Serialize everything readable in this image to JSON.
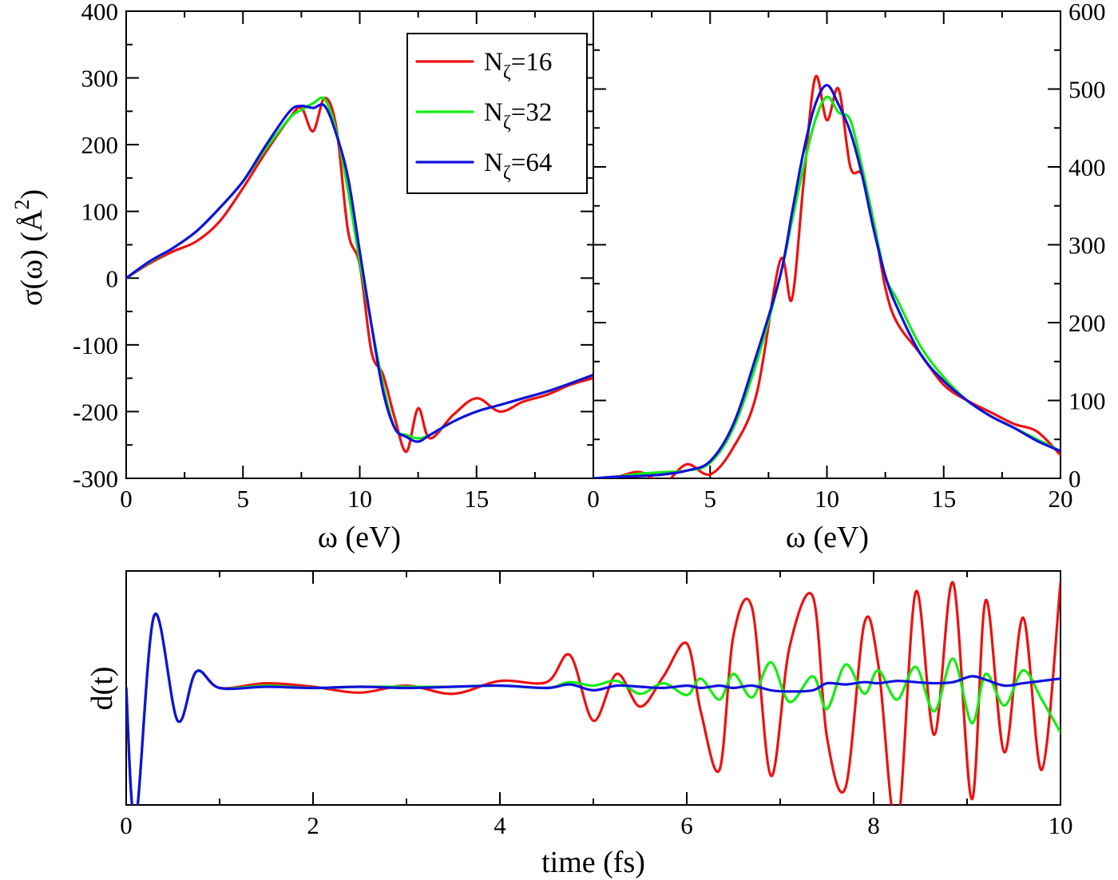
{
  "colors": {
    "red": "#ee1111",
    "green": "#11ee11",
    "blue": "#1111dd"
  },
  "legend": [
    {
      "base": "N",
      "sub": "ζ",
      "rest": "=16",
      "color": "#ee1111"
    },
    {
      "base": "N",
      "sub": "ζ",
      "rest": "=32",
      "color": "#11ee11"
    },
    {
      "base": "N",
      "sub": "ζ",
      "rest": "=64",
      "color": "#1111dd"
    }
  ],
  "labels": {
    "left_ylabel": "σ(ω) (Å",
    "left_ylabel_sup": "2",
    "left_ylabel_close": ")",
    "left_xlabel": "ω (eV)",
    "right_xlabel": "ω (eV)",
    "bottom_xlabel": "time (fs)",
    "bottom_ylabel": "d(t)"
  },
  "chart_data": [
    {
      "id": "left",
      "type": "line",
      "title": "",
      "xlabel": "ω (eV)",
      "ylabel": "σ(ω) (Å^2)",
      "xlim": [
        0,
        20
      ],
      "ylim": [
        -300,
        400
      ],
      "xticks": [
        0,
        5,
        10,
        15
      ],
      "xtick_labels": [
        "0",
        "5",
        "10",
        "15"
      ],
      "yticks": [
        -300,
        -200,
        -100,
        0,
        100,
        200,
        300,
        400
      ],
      "ytick_labels": [
        "-300",
        "-200",
        "-100",
        "0",
        "100",
        "200",
        "300",
        "400"
      ],
      "x": [
        0,
        1,
        2,
        3,
        4,
        5,
        6,
        7,
        7.5,
        8,
        8.5,
        9,
        9.5,
        10,
        10.5,
        11,
        11.5,
        12,
        12.5,
        13,
        14,
        15,
        16,
        17,
        18,
        19,
        20
      ],
      "series": [
        {
          "name": "N_ζ=16",
          "color": "#ee1111",
          "values": [
            0,
            22,
            40,
            55,
            85,
            135,
            190,
            240,
            255,
            220,
            270,
            225,
            70,
            20,
            -110,
            -145,
            -210,
            -260,
            -195,
            -240,
            -205,
            -180,
            -200,
            -185,
            -175,
            -160,
            -150
          ]
        },
        {
          "name": "N_ζ=32",
          "color": "#11ee11",
          "values": [
            0,
            24,
            45,
            70,
            105,
            145,
            195,
            240,
            252,
            262,
            268,
            220,
            130,
            25,
            -70,
            -160,
            -225,
            -235,
            -240,
            -235,
            -215,
            -200,
            -190,
            -180,
            -170,
            -158,
            -145
          ]
        },
        {
          "name": "N_ζ=64",
          "color": "#1111dd",
          "values": [
            0,
            25,
            45,
            70,
            105,
            145,
            200,
            250,
            258,
            255,
            258,
            215,
            150,
            40,
            -70,
            -170,
            -225,
            -238,
            -245,
            -235,
            -215,
            -200,
            -190,
            -180,
            -170,
            -158,
            -145
          ]
        }
      ]
    },
    {
      "id": "right",
      "type": "line",
      "title": "",
      "xlabel": "ω (eV)",
      "ylabel": "",
      "xlim": [
        0,
        20
      ],
      "ylim": [
        0,
        600
      ],
      "xticks": [
        0,
        5,
        10,
        15,
        20
      ],
      "xtick_labels": [
        "0",
        "5",
        "10",
        "15",
        "20"
      ],
      "yticks": [
        0,
        100,
        200,
        300,
        400,
        500,
        600
      ],
      "ytick_labels": [
        "0",
        "100",
        "200",
        "300",
        "400",
        "500",
        "600"
      ],
      "x": [
        0,
        1,
        2,
        3,
        4,
        5,
        6,
        7,
        8,
        8.5,
        9,
        9.5,
        10,
        10.5,
        11,
        11.5,
        12,
        12.5,
        13,
        14,
        15,
        16,
        17,
        18,
        19,
        20
      ],
      "series": [
        {
          "name": "N_ζ=16",
          "color": "#ee1111",
          "values": [
            0,
            2,
            8,
            -6,
            18,
            5,
            40,
            110,
            280,
            230,
            380,
            515,
            460,
            500,
            400,
            390,
            330,
            245,
            200,
            160,
            120,
            100,
            85,
            70,
            60,
            30
          ]
        },
        {
          "name": "N_ζ=32",
          "color": "#11ee11",
          "values": [
            0,
            2,
            6,
            8,
            10,
            20,
            65,
            150,
            260,
            330,
            400,
            460,
            490,
            470,
            460,
            400,
            330,
            260,
            230,
            170,
            130,
            100,
            80,
            65,
            50,
            35
          ]
        },
        {
          "name": "N_ζ=64",
          "color": "#1111dd",
          "values": [
            0,
            2,
            3,
            5,
            10,
            22,
            70,
            160,
            260,
            340,
            420,
            480,
            505,
            480,
            445,
            390,
            320,
            260,
            220,
            160,
            125,
            100,
            80,
            65,
            48,
            35
          ]
        }
      ]
    },
    {
      "id": "bottom",
      "type": "line",
      "title": "",
      "xlabel": "time (fs)",
      "ylabel": "d(t)",
      "xlim": [
        0,
        10
      ],
      "ylim": [
        -1,
        1
      ],
      "xticks": [
        0,
        2,
        4,
        6,
        8,
        10
      ],
      "xtick_labels": [
        "0",
        "2",
        "4",
        "6",
        "8",
        "10"
      ],
      "yticks": [],
      "ytick_labels": [],
      "x": [
        0,
        0.1,
        0.3,
        0.55,
        0.75,
        1.0,
        1.5,
        2.0,
        2.5,
        3.0,
        3.5,
        4.0,
        4.5,
        4.75,
        5.0,
        5.25,
        5.5,
        5.75,
        6.0,
        6.15,
        6.35,
        6.5,
        6.7,
        6.9,
        7.1,
        7.35,
        7.5,
        7.7,
        7.9,
        8.05,
        8.25,
        8.45,
        8.65,
        8.85,
        9.05,
        9.2,
        9.4,
        9.6,
        9.8,
        10.0
      ],
      "series": [
        {
          "name": "N_ζ=16",
          "color": "#ee1111",
          "values": [
            0,
            -1.13,
            0.62,
            -0.28,
            0.14,
            0.0,
            0.04,
            0.01,
            -0.04,
            0.02,
            -0.05,
            0.06,
            0.05,
            0.28,
            -0.28,
            0.12,
            -0.16,
            0.1,
            0.38,
            -0.2,
            -0.7,
            0.45,
            0.68,
            -0.75,
            0.35,
            0.78,
            -0.42,
            -0.85,
            0.55,
            0.2,
            -1.2,
            0.82,
            -0.4,
            0.9,
            -0.95,
            0.75,
            -0.55,
            0.6,
            -0.7,
            0.9
          ]
        },
        {
          "name": "N_ζ=32",
          "color": "#11ee11",
          "values": [
            0,
            -1.13,
            0.62,
            -0.28,
            0.14,
            0.0,
            0.02,
            0.0,
            0.01,
            0.01,
            0.01,
            0.02,
            0.0,
            0.05,
            0.02,
            0.06,
            -0.05,
            0.04,
            -0.06,
            0.08,
            -0.1,
            0.12,
            -0.08,
            0.22,
            -0.12,
            0.1,
            -0.18,
            0.2,
            -0.05,
            0.15,
            -0.1,
            0.18,
            -0.2,
            0.25,
            -0.3,
            0.12,
            -0.15,
            0.15,
            -0.1,
            -0.38
          ]
        },
        {
          "name": "N_ζ=64",
          "color": "#1111dd",
          "values": [
            0,
            -1.13,
            0.62,
            -0.28,
            0.14,
            0.0,
            0.01,
            0.0,
            0.01,
            0.0,
            0.01,
            0.02,
            0.0,
            0.03,
            -0.02,
            0.02,
            0.01,
            0.0,
            0.02,
            0.0,
            0.02,
            0.0,
            0.02,
            -0.02,
            -0.03,
            -0.02,
            0.04,
            0.03,
            0.05,
            0.04,
            0.06,
            0.05,
            0.04,
            0.05,
            0.1,
            0.07,
            0.02,
            0.04,
            0.06,
            0.08
          ]
        }
      ]
    }
  ]
}
